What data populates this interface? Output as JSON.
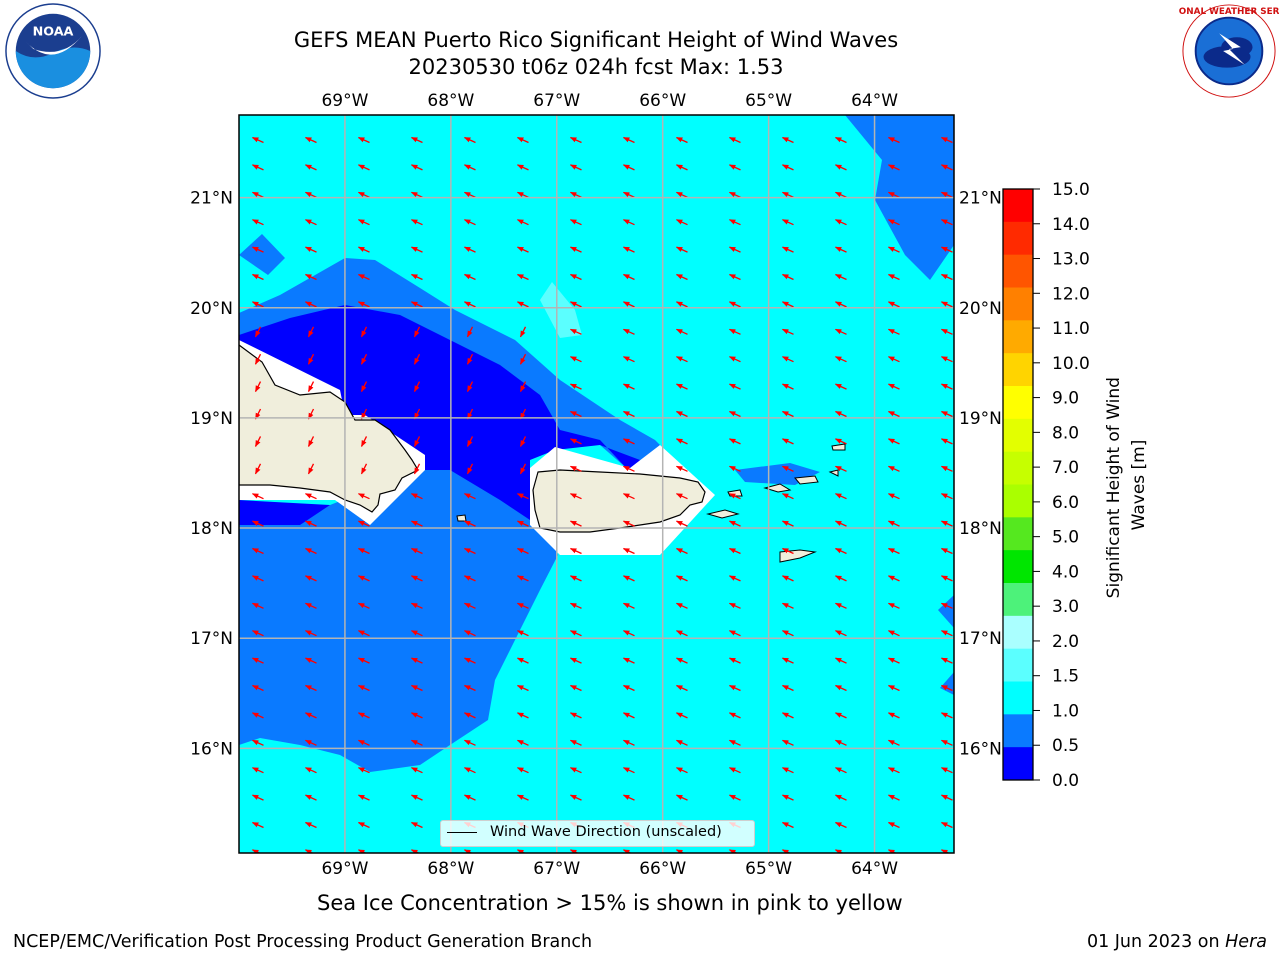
{
  "title": {
    "line1": "GEFS MEAN Puerto Rico Significant Height of Wind Waves",
    "line2": "20230530 t06z 024h fcst   Max: 1.53"
  },
  "logos": {
    "noaa_text": "NOAA",
    "nws_text": "NATIONAL WEATHER SERVICE"
  },
  "map": {
    "lon_range": [
      -70,
      -63.25
    ],
    "lat_range": [
      15.05,
      21.75
    ],
    "lon_ticks": [
      "69°W",
      "68°W",
      "67°W",
      "66°W",
      "65°W",
      "64°W"
    ],
    "lat_ticks": [
      "21°N",
      "20°N",
      "19°N",
      "18°N",
      "17°N",
      "16°N"
    ],
    "gridlines": true,
    "colors": {
      "band_0_05": "#0000ff",
      "band_05_10": "#0a7aff",
      "band_10_15": "#00ffff",
      "band_15_20": "#5bffff",
      "land": "#f0eedc",
      "arrows": "#ff0000"
    },
    "legend_label": "Wind Wave Direction (unscaled)"
  },
  "colorbar": {
    "label": "Significant Height of Wind Waves [m]",
    "ticks": [
      "15.0",
      "14.0",
      "13.0",
      "12.0",
      "11.0",
      "10.0",
      "9.0",
      "8.0",
      "7.0",
      "6.0",
      "5.0",
      "4.0",
      "3.0",
      "2.0",
      "1.5",
      "1.0",
      "0.5",
      "0.0"
    ],
    "colors": [
      "#ff0000",
      "#ff2a00",
      "#ff5500",
      "#ff8000",
      "#ffaa00",
      "#ffd400",
      "#ffff00",
      "#e3ff00",
      "#c6ff00",
      "#aaff00",
      "#55e81f",
      "#00e600",
      "#4df27a",
      "#aaffff",
      "#5bffff",
      "#00ffff",
      "#0a7aff",
      "#0000ff"
    ]
  },
  "note": "Sea Ice Concentration > 15% is shown in pink to yellow",
  "footer": {
    "left": "NCEP/EMC/Verification Post Processing Product Generation Branch",
    "right_prefix": "01 Jun 2023 on ",
    "right_host": "Hera"
  }
}
